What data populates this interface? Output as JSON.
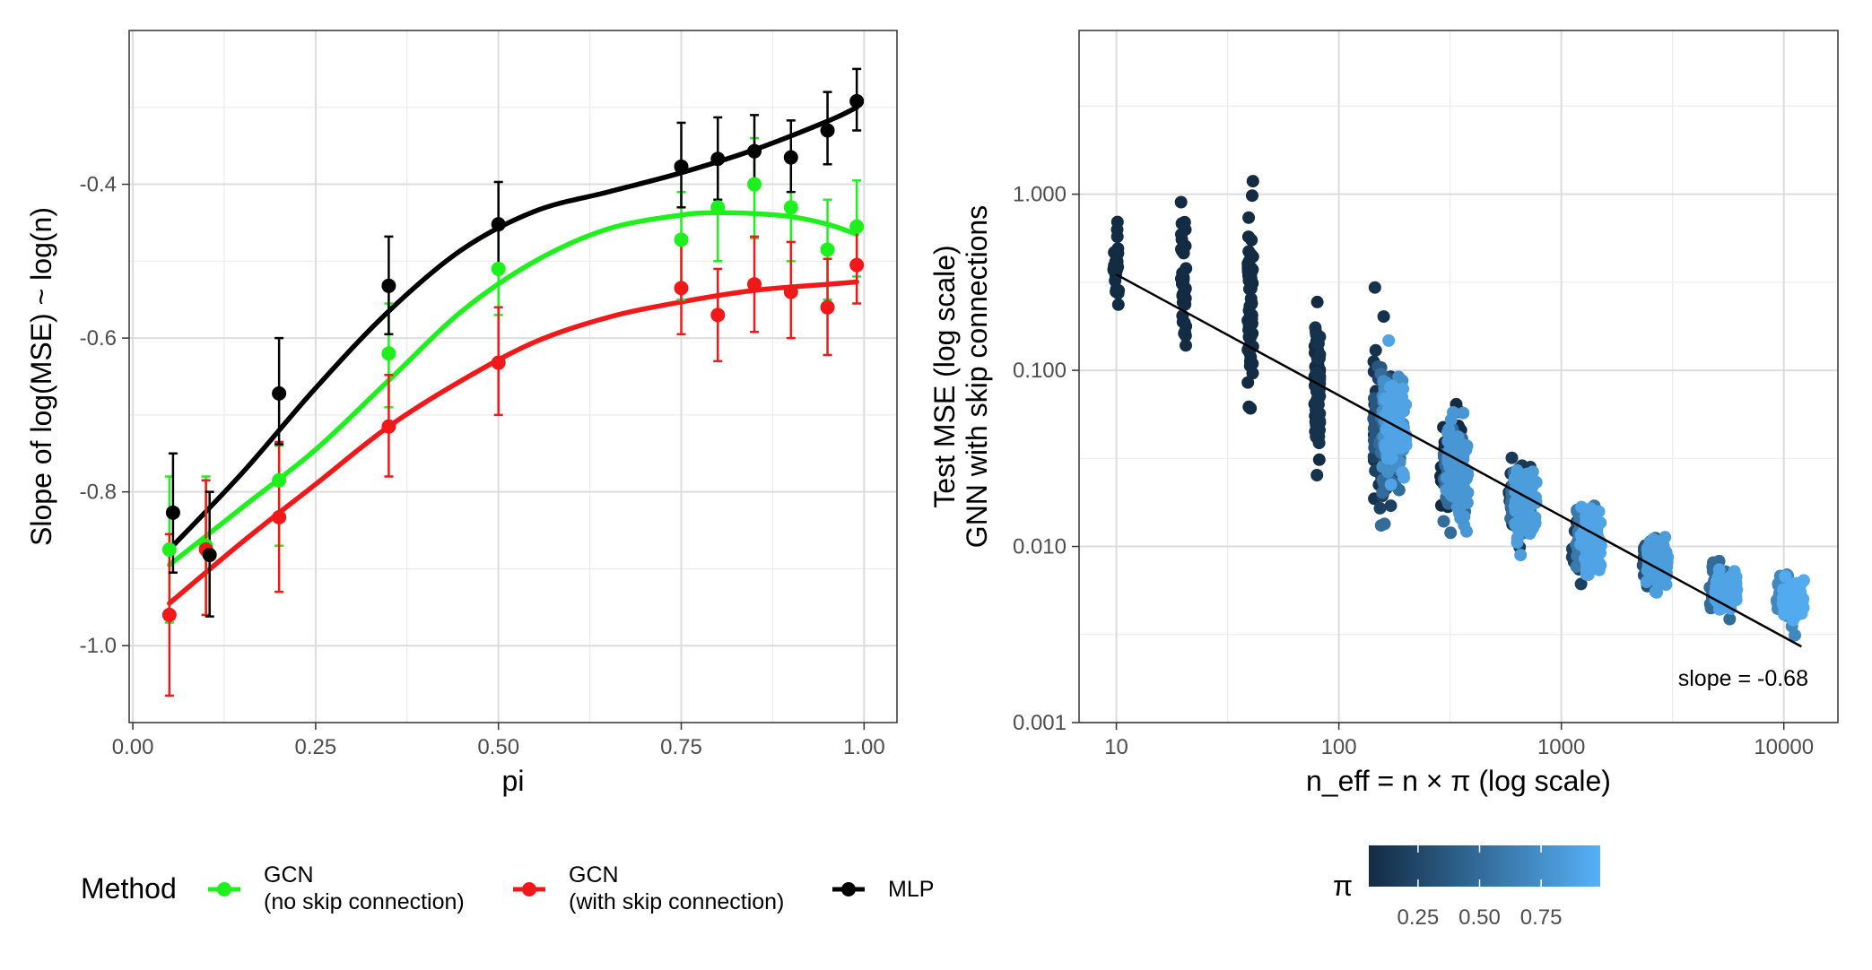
{
  "chart_data": [
    {
      "type": "line",
      "panel": "left",
      "title": "",
      "xlabel": "pi",
      "ylabel": "Slope of log(MSE) ~ log(n)",
      "xlim": [
        -0.005,
        1.045
      ],
      "ylim": [
        -1.1,
        -0.2
      ],
      "x_ticks": [
        0.0,
        0.25,
        0.5,
        0.75,
        1.0
      ],
      "x_tick_labels": [
        "0.00",
        "0.25",
        "0.50",
        "0.75",
        "1.00"
      ],
      "y_ticks": [
        -1.0,
        -0.8,
        -0.6,
        -0.4
      ],
      "y_tick_labels": [
        "-1.0",
        "-0.8",
        "-0.6",
        "-0.4"
      ],
      "grid": true,
      "legend": {
        "title": "Method",
        "placement": "bottom",
        "entries": [
          {
            "series": "gcn_no_skip",
            "line1": "GCN",
            "line2": "(no skip connection)"
          },
          {
            "series": "gcn_skip",
            "line1": "GCN",
            "line2": "(with skip connection)"
          },
          {
            "series": "mlp",
            "line1": "MLP",
            "line2": ""
          }
        ]
      },
      "series": [
        {
          "id": "gcn_no_skip",
          "name": "GCN (no skip connection)",
          "color": "#1EF01E",
          "points": [
            {
              "x": 0.05,
              "y": -0.875,
              "lo": -0.97,
              "hi": -0.78
            },
            {
              "x": 0.1,
              "y": -0.87,
              "lo": -0.96,
              "hi": -0.78
            },
            {
              "x": 0.2,
              "y": -0.785,
              "lo": -0.87,
              "hi": -0.74
            },
            {
              "x": 0.35,
              "y": -0.62,
              "lo": -0.69,
              "hi": -0.555
            },
            {
              "x": 0.5,
              "y": -0.51,
              "lo": -0.57,
              "hi": -0.45
            },
            {
              "x": 0.75,
              "y": -0.472,
              "lo": -0.55,
              "hi": -0.41
            },
            {
              "x": 0.8,
              "y": -0.43,
              "lo": -0.5,
              "hi": -0.37
            },
            {
              "x": 0.85,
              "y": -0.4,
              "lo": -0.47,
              "hi": -0.34
            },
            {
              "x": 0.9,
              "y": -0.43,
              "lo": -0.5,
              "hi": -0.365
            },
            {
              "x": 0.95,
              "y": -0.485,
              "lo": -0.55,
              "hi": -0.42
            },
            {
              "x": 0.99,
              "y": -0.455,
              "lo": -0.52,
              "hi": -0.395
            }
          ],
          "fit": [
            [
              0.05,
              -0.895
            ],
            [
              0.15,
              -0.82
            ],
            [
              0.25,
              -0.745
            ],
            [
              0.35,
              -0.655
            ],
            [
              0.45,
              -0.565
            ],
            [
              0.55,
              -0.5
            ],
            [
              0.65,
              -0.458
            ],
            [
              0.75,
              -0.44
            ],
            [
              0.8,
              -0.437
            ],
            [
              0.85,
              -0.438
            ],
            [
              0.9,
              -0.442
            ],
            [
              0.95,
              -0.452
            ],
            [
              0.99,
              -0.465
            ]
          ]
        },
        {
          "id": "gcn_skip",
          "name": "GCN (with skip connection)",
          "color": "#F01818",
          "points": [
            {
              "x": 0.05,
              "y": -0.96,
              "lo": -1.065,
              "hi": -0.855
            },
            {
              "x": 0.1,
              "y": -0.875,
              "lo": -0.96,
              "hi": -0.785
            },
            {
              "x": 0.2,
              "y": -0.833,
              "lo": -0.93,
              "hi": -0.735
            },
            {
              "x": 0.35,
              "y": -0.715,
              "lo": -0.78,
              "hi": -0.648
            },
            {
              "x": 0.5,
              "y": -0.632,
              "lo": -0.7,
              "hi": -0.56
            },
            {
              "x": 0.75,
              "y": -0.535,
              "lo": -0.595,
              "hi": -0.475
            },
            {
              "x": 0.8,
              "y": -0.57,
              "lo": -0.63,
              "hi": -0.51
            },
            {
              "x": 0.85,
              "y": -0.53,
              "lo": -0.592,
              "hi": -0.468
            },
            {
              "x": 0.9,
              "y": -0.54,
              "lo": -0.6,
              "hi": -0.475
            },
            {
              "x": 0.95,
              "y": -0.56,
              "lo": -0.622,
              "hi": -0.497
            },
            {
              "x": 0.99,
              "y": -0.505,
              "lo": -0.555,
              "hi": -0.455
            }
          ],
          "fit": [
            [
              0.05,
              -0.945
            ],
            [
              0.15,
              -0.865
            ],
            [
              0.25,
              -0.79
            ],
            [
              0.35,
              -0.715
            ],
            [
              0.45,
              -0.655
            ],
            [
              0.55,
              -0.605
            ],
            [
              0.65,
              -0.573
            ],
            [
              0.75,
              -0.553
            ],
            [
              0.85,
              -0.538
            ],
            [
              0.95,
              -0.53
            ],
            [
              0.99,
              -0.527
            ]
          ]
        },
        {
          "id": "mlp",
          "name": "MLP",
          "color": "#000000",
          "points": [
            {
              "x": 0.055,
              "y": -0.827,
              "lo": -0.905,
              "hi": -0.75
            },
            {
              "x": 0.105,
              "y": -0.882,
              "lo": -0.962,
              "hi": -0.8
            },
            {
              "x": 0.2,
              "y": -0.672,
              "lo": -0.738,
              "hi": -0.6
            },
            {
              "x": 0.35,
              "y": -0.532,
              "lo": -0.595,
              "hi": -0.468
            },
            {
              "x": 0.5,
              "y": -0.452,
              "lo": -0.505,
              "hi": -0.397
            },
            {
              "x": 0.75,
              "y": -0.377,
              "lo": -0.43,
              "hi": -0.32
            },
            {
              "x": 0.8,
              "y": -0.367,
              "lo": -0.42,
              "hi": -0.313
            },
            {
              "x": 0.85,
              "y": -0.357,
              "lo": -0.4,
              "hi": -0.31
            },
            {
              "x": 0.9,
              "y": -0.365,
              "lo": -0.41,
              "hi": -0.317
            },
            {
              "x": 0.95,
              "y": -0.33,
              "lo": -0.374,
              "hi": -0.28
            },
            {
              "x": 0.99,
              "y": -0.292,
              "lo": -0.33,
              "hi": -0.25
            }
          ],
          "fit": [
            [
              0.05,
              -0.875
            ],
            [
              0.15,
              -0.775
            ],
            [
              0.25,
              -0.665
            ],
            [
              0.35,
              -0.565
            ],
            [
              0.45,
              -0.485
            ],
            [
              0.55,
              -0.435
            ],
            [
              0.65,
              -0.41
            ],
            [
              0.75,
              -0.385
            ],
            [
              0.85,
              -0.355
            ],
            [
              0.95,
              -0.318
            ],
            [
              0.99,
              -0.3
            ]
          ]
        }
      ]
    },
    {
      "type": "scatter",
      "panel": "right",
      "title": "",
      "xlabel": "n_eff = n × π (log scale)",
      "ylabel_line1": "Test MSE (log scale)",
      "ylabel_line2": "GNN with skip connections",
      "x_scale": "log10",
      "y_scale": "log10",
      "xlim": [
        6.8,
        17500
      ],
      "ylim": [
        0.001,
        8.5
      ],
      "x_ticks": [
        10,
        100,
        1000,
        10000
      ],
      "x_tick_labels": [
        "10",
        "100",
        "1000",
        "10000"
      ],
      "y_ticks": [
        0.001,
        0.01,
        0.1,
        1.0
      ],
      "y_tick_labels": [
        "0.001",
        "0.010",
        "0.100",
        "1.000"
      ],
      "grid": true,
      "annotation": "slope = -0.68",
      "fit_line": {
        "color": "#000000",
        "points": [
          [
            10,
            0.35
          ],
          [
            12000,
            0.0027
          ]
        ]
      },
      "color_scale": {
        "title": "π",
        "low_color": "#132B43",
        "high_color": "#56B1F7",
        "domain": [
          0.05,
          0.99
        ],
        "ticks": [
          0.25,
          0.5,
          0.75
        ],
        "tick_labels": [
          "0.25",
          "0.50",
          "0.75"
        ],
        "placement": "bottom"
      },
      "clusters": [
        {
          "pi": 0.05,
          "n_eff": 10,
          "center": 0.42,
          "spread_log10": 0.35,
          "count": 30
        },
        {
          "pi": 0.05,
          "n_eff": 20,
          "center": 0.35,
          "spread_log10": 0.45,
          "count": 40
        },
        {
          "pi": 0.05,
          "n_eff": 40,
          "center": 0.2,
          "spread_log10": 0.65,
          "count": 60
        },
        {
          "pi": 0.05,
          "n_eff": 80,
          "center": 0.085,
          "spread_log10": 0.4,
          "count": 60
        },
        {
          "pi": 0.1,
          "n_eff": 80,
          "center": 0.07,
          "spread_log10": 0.45,
          "count": 40
        },
        {
          "pi": 0.1,
          "n_eff": 160,
          "center": 0.05,
          "spread_log10": 0.45,
          "count": 40
        },
        {
          "pi": 0.2,
          "n_eff": 160,
          "center": 0.045,
          "spread_log10": 0.4,
          "count": 40
        },
        {
          "pi": 0.35,
          "n_eff": 160,
          "center": 0.05,
          "spread_log10": 0.35,
          "count": 40
        },
        {
          "pi": 0.5,
          "n_eff": 170,
          "center": 0.045,
          "spread_log10": 0.35,
          "count": 60
        },
        {
          "pi": 0.75,
          "n_eff": 175,
          "center": 0.05,
          "spread_log10": 0.3,
          "count": 80
        },
        {
          "pi": 0.9,
          "n_eff": 180,
          "center": 0.045,
          "spread_log10": 0.35,
          "count": 60
        },
        {
          "pi": 0.05,
          "n_eff": 320,
          "center": 0.03,
          "spread_log10": 0.3,
          "count": 40
        },
        {
          "pi": 0.5,
          "n_eff": 330,
          "center": 0.025,
          "spread_log10": 0.25,
          "count": 80
        },
        {
          "pi": 0.8,
          "n_eff": 340,
          "center": 0.025,
          "spread_log10": 0.3,
          "count": 80
        },
        {
          "pi": 0.15,
          "n_eff": 650,
          "center": 0.017,
          "spread_log10": 0.25,
          "count": 40
        },
        {
          "pi": 0.5,
          "n_eff": 660,
          "center": 0.018,
          "spread_log10": 0.22,
          "count": 80
        },
        {
          "pi": 0.85,
          "n_eff": 690,
          "center": 0.017,
          "spread_log10": 0.25,
          "count": 80
        },
        {
          "pi": 0.2,
          "n_eff": 1250,
          "center": 0.011,
          "spread_log10": 0.2,
          "count": 40
        },
        {
          "pi": 0.6,
          "n_eff": 1300,
          "center": 0.011,
          "spread_log10": 0.18,
          "count": 80
        },
        {
          "pi": 0.9,
          "n_eff": 1350,
          "center": 0.011,
          "spread_log10": 0.2,
          "count": 60
        },
        {
          "pi": 0.3,
          "n_eff": 2600,
          "center": 0.008,
          "spread_log10": 0.15,
          "count": 50
        },
        {
          "pi": 0.85,
          "n_eff": 2700,
          "center": 0.008,
          "spread_log10": 0.15,
          "count": 80
        },
        {
          "pi": 0.5,
          "n_eff": 5200,
          "center": 0.0058,
          "spread_log10": 0.13,
          "count": 60
        },
        {
          "pi": 0.9,
          "n_eff": 5500,
          "center": 0.0058,
          "spread_log10": 0.13,
          "count": 80
        },
        {
          "pi": 0.7,
          "n_eff": 10400,
          "center": 0.005,
          "spread_log10": 0.12,
          "count": 60
        },
        {
          "pi": 0.95,
          "n_eff": 11000,
          "center": 0.005,
          "spread_log10": 0.12,
          "count": 80
        }
      ]
    }
  ]
}
